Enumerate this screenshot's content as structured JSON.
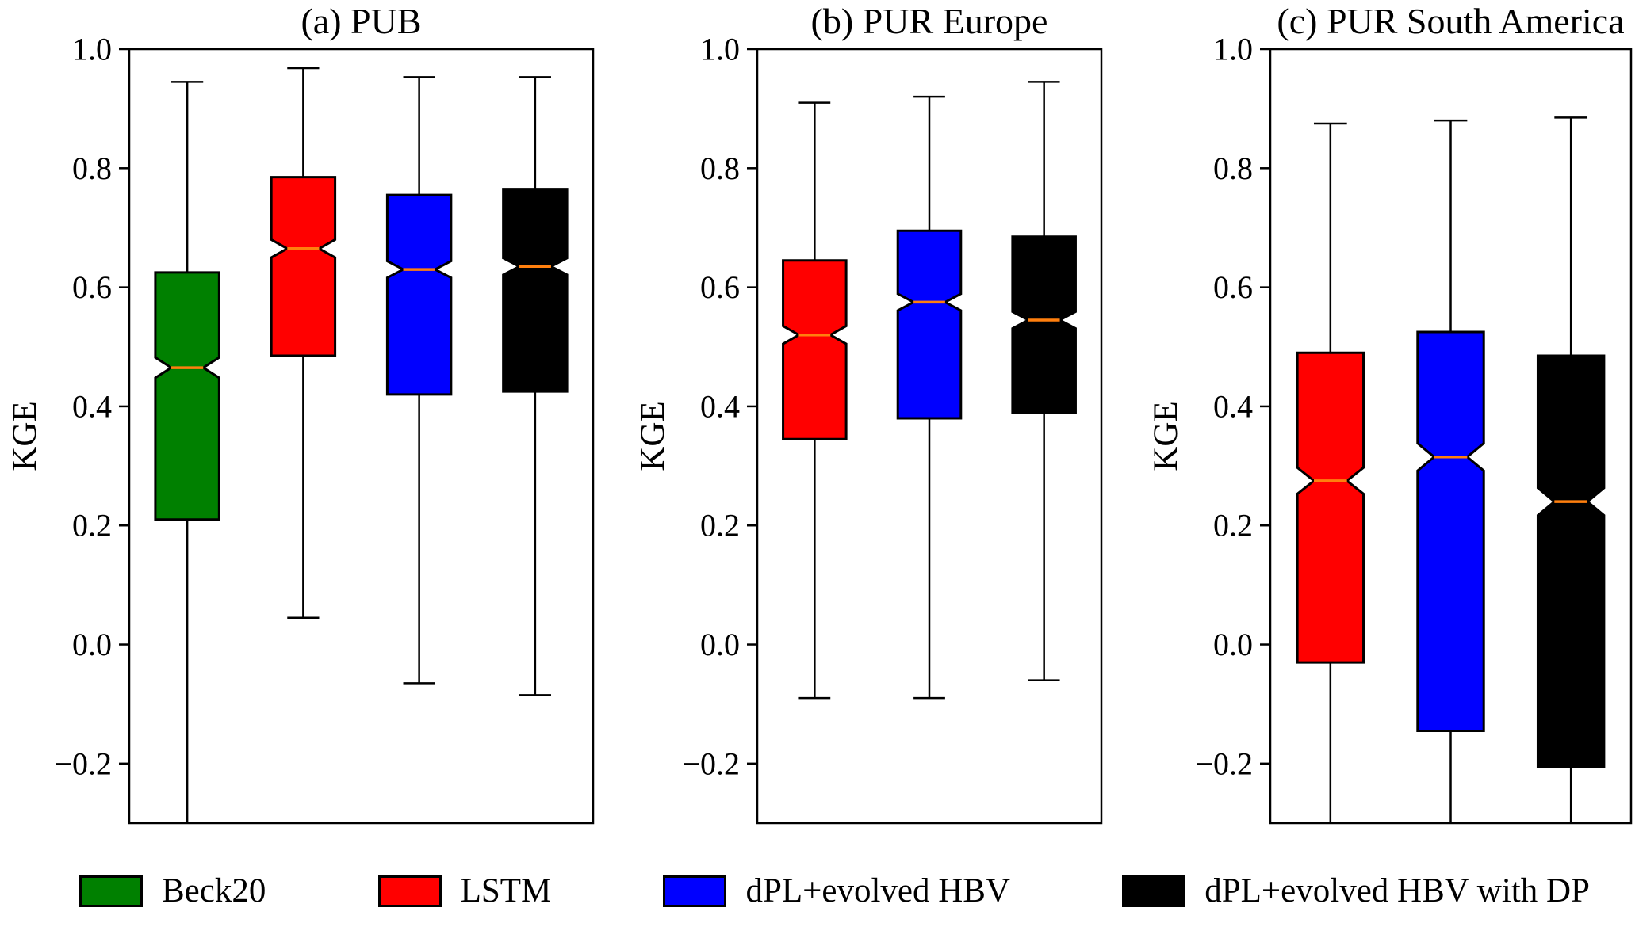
{
  "figure": {
    "background": "#ffffff"
  },
  "chart_data": {
    "type": "boxplot",
    "ylabel": "KGE",
    "ylim": [
      -0.3,
      1.0
    ],
    "yticks": [
      {
        "v": 1.0,
        "label": "1.0"
      },
      {
        "v": 0.8,
        "label": "0.8"
      },
      {
        "v": 0.6,
        "label": "0.6"
      },
      {
        "v": 0.4,
        "label": "0.4"
      },
      {
        "v": 0.2,
        "label": "0.2"
      },
      {
        "v": 0.0,
        "label": "0.0"
      },
      {
        "v": -0.2,
        "label": "−0.2"
      }
    ],
    "median_color": "#ff7f0e",
    "notched": true,
    "grid": false,
    "panels": [
      {
        "title": "(a) PUB",
        "boxes": [
          {
            "name": "Beck20",
            "color": "#008000",
            "whisker_low": -0.32,
            "low_clipped": true,
            "q1": 0.21,
            "notch_lo": 0.448,
            "median": 0.465,
            "notch_hi": 0.482,
            "q3": 0.625,
            "whisker_high": 0.945
          },
          {
            "name": "LSTM",
            "color": "#ff0000",
            "whisker_low": 0.045,
            "low_clipped": false,
            "q1": 0.485,
            "notch_lo": 0.65,
            "median": 0.665,
            "notch_hi": 0.68,
            "q3": 0.785,
            "whisker_high": 0.968
          },
          {
            "name": "dPL+evolved HBV",
            "color": "#0000ff",
            "whisker_low": -0.065,
            "low_clipped": false,
            "q1": 0.42,
            "notch_lo": 0.616,
            "median": 0.63,
            "notch_hi": 0.644,
            "q3": 0.755,
            "whisker_high": 0.953
          },
          {
            "name": "dPL+evolved HBV with DP",
            "color": "#000000",
            "whisker_low": -0.085,
            "low_clipped": false,
            "q1": 0.425,
            "notch_lo": 0.621,
            "median": 0.635,
            "notch_hi": 0.649,
            "q3": 0.765,
            "whisker_high": 0.953
          }
        ]
      },
      {
        "title": "(b) PUR Europe",
        "boxes": [
          {
            "name": "LSTM",
            "color": "#ff0000",
            "whisker_low": -0.09,
            "low_clipped": false,
            "q1": 0.345,
            "notch_lo": 0.505,
            "median": 0.52,
            "notch_hi": 0.535,
            "q3": 0.645,
            "whisker_high": 0.91
          },
          {
            "name": "dPL+evolved HBV",
            "color": "#0000ff",
            "whisker_low": -0.09,
            "low_clipped": false,
            "q1": 0.38,
            "notch_lo": 0.561,
            "median": 0.575,
            "notch_hi": 0.589,
            "q3": 0.695,
            "whisker_high": 0.92
          },
          {
            "name": "dPL+evolved HBV with DP",
            "color": "#000000",
            "whisker_low": -0.06,
            "low_clipped": false,
            "q1": 0.39,
            "notch_lo": 0.531,
            "median": 0.545,
            "notch_hi": 0.559,
            "q3": 0.685,
            "whisker_high": 0.945
          }
        ]
      },
      {
        "title": "(c) PUR South America",
        "boxes": [
          {
            "name": "LSTM",
            "color": "#ff0000",
            "whisker_low": -0.32,
            "low_clipped": true,
            "q1": -0.03,
            "notch_lo": 0.253,
            "median": 0.275,
            "notch_hi": 0.297,
            "q3": 0.49,
            "whisker_high": 0.875
          },
          {
            "name": "dPL+evolved HBV",
            "color": "#0000ff",
            "whisker_low": -0.32,
            "low_clipped": true,
            "q1": -0.145,
            "notch_lo": 0.292,
            "median": 0.315,
            "notch_hi": 0.338,
            "q3": 0.525,
            "whisker_high": 0.88
          },
          {
            "name": "dPL+evolved HBV with DP",
            "color": "#000000",
            "whisker_low": -0.32,
            "low_clipped": true,
            "q1": -0.205,
            "notch_lo": 0.217,
            "median": 0.24,
            "notch_hi": 0.263,
            "q3": 0.485,
            "whisker_high": 0.885
          }
        ]
      }
    ]
  },
  "legend": {
    "items": [
      {
        "label": "Beck20",
        "color": "#008000"
      },
      {
        "label": "LSTM",
        "color": "#ff0000"
      },
      {
        "label": "dPL+evolved HBV",
        "color": "#0000ff"
      },
      {
        "label": "dPL+evolved HBV with DP",
        "color": "#000000"
      }
    ]
  }
}
